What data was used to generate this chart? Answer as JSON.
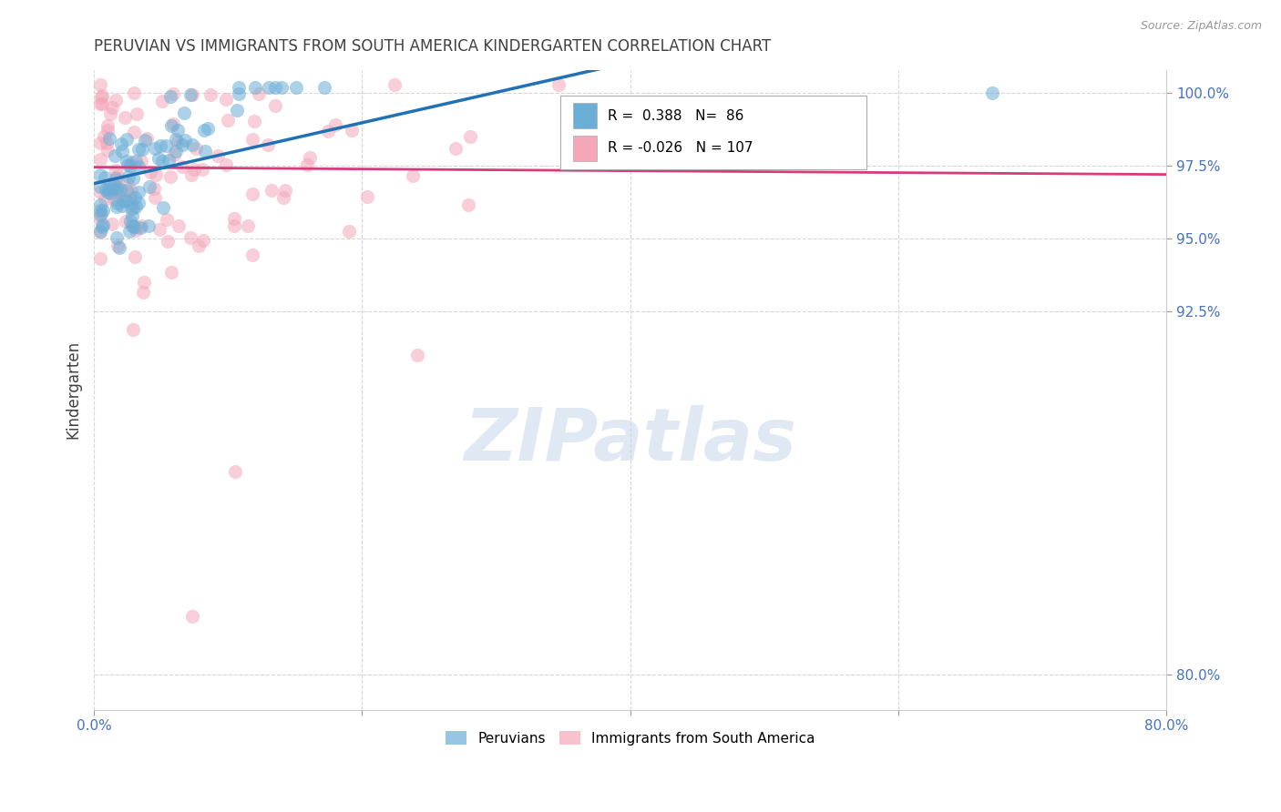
{
  "title": "PERUVIAN VS IMMIGRANTS FROM SOUTH AMERICA KINDERGARTEN CORRELATION CHART",
  "source": "Source: ZipAtlas.com",
  "ylabel": "Kindergarten",
  "xlim": [
    0.0,
    0.8
  ],
  "ylim": [
    0.788,
    1.008
  ],
  "yticks": [
    0.8,
    0.925,
    0.95,
    0.975,
    1.0
  ],
  "ytick_labels": [
    "80.0%",
    "92.5%",
    "95.0%",
    "97.5%",
    "100.0%"
  ],
  "xticks": [
    0.0,
    0.2,
    0.4,
    0.6,
    0.8
  ],
  "xtick_labels": [
    "0.0%",
    "",
    "",
    "",
    "80.0%"
  ],
  "blue_R": 0.388,
  "blue_N": 86,
  "pink_R": -0.026,
  "pink_N": 107,
  "blue_color": "#6baed6",
  "pink_color": "#f4a7b9",
  "blue_line_color": "#2171b5",
  "pink_line_color": "#d63b7a",
  "watermark": "ZIPatlas",
  "legend_labels": [
    "Peruvians",
    "Immigrants from South America"
  ],
  "background_color": "#ffffff",
  "grid_color": "#cccccc",
  "title_color": "#404040",
  "axis_tick_color": "#4472c4"
}
